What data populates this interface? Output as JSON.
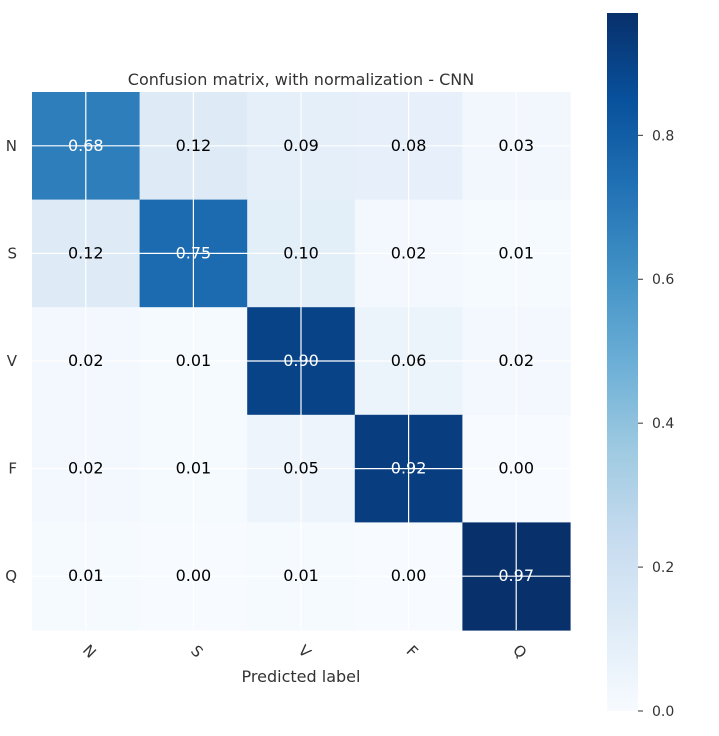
{
  "chart_data": {
    "type": "heatmap",
    "title": "Confusion matrix, with normalization - CNN",
    "xlabel": "Predicted label",
    "ylabel": "",
    "x_tick_labels": [
      "N",
      "S",
      "V",
      "F",
      "Q"
    ],
    "y_tick_labels": [
      "N",
      "S",
      "V",
      "F",
      "Q"
    ],
    "matrix": [
      [
        0.68,
        0.12,
        0.09,
        0.08,
        0.03
      ],
      [
        0.12,
        0.75,
        0.1,
        0.02,
        0.01
      ],
      [
        0.02,
        0.01,
        0.9,
        0.06,
        0.02
      ],
      [
        0.02,
        0.01,
        0.05,
        0.92,
        0.0
      ],
      [
        0.01,
        0.0,
        0.01,
        0.0,
        0.97
      ]
    ],
    "colormap": "Blues",
    "colorbar": {
      "range": [
        0.0,
        0.97
      ],
      "ticks": [
        0.0,
        0.2,
        0.4,
        0.6,
        0.8
      ],
      "tick_labels": [
        "0.0",
        "0.2",
        "0.4",
        "0.6",
        "0.8"
      ]
    },
    "grid": true,
    "text_threshold": 0.485,
    "colors": {
      "text_dark": "#000000",
      "text_light": "#ffffff",
      "grid": "#ffffff",
      "label": "#333333"
    }
  }
}
